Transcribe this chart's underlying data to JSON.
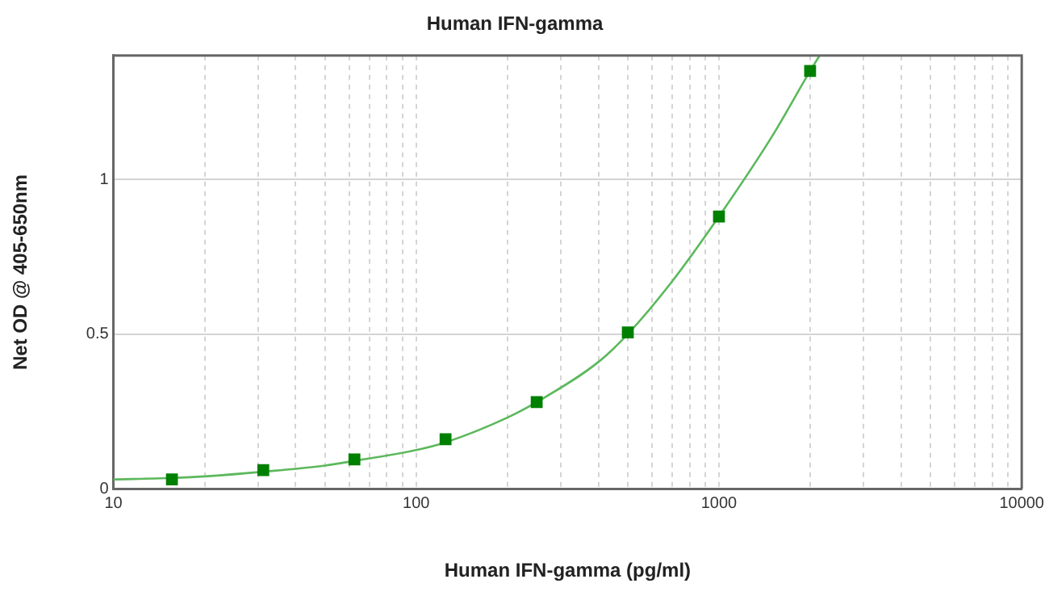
{
  "chart_data": {
    "type": "scatter",
    "title": "Human IFN-gamma",
    "xlabel": "Human IFN-gamma (pg/ml)",
    "ylabel": "Net OD @ 405-650nm",
    "log": "x",
    "grid": true,
    "legend": false,
    "xlim": [
      10,
      10000
    ],
    "ylim": [
      0,
      1.4
    ],
    "xticks": [
      10,
      {
        "value": 20,
        "label": null
      },
      {
        "value": 30,
        "label": null
      },
      {
        "value": 40,
        "label": null
      },
      {
        "value": 50,
        "label": null
      },
      {
        "value": 60,
        "label": null
      },
      {
        "value": 70,
        "label": null
      },
      {
        "value": 80,
        "label": null
      },
      {
        "value": 90,
        "label": null
      },
      100,
      {
        "value": 200,
        "label": null
      },
      {
        "value": 300,
        "label": null
      },
      {
        "value": 400,
        "label": null
      },
      {
        "value": 500,
        "label": null
      },
      {
        "value": 600,
        "label": null
      },
      {
        "value": 700,
        "label": null
      },
      {
        "value": 800,
        "label": null
      },
      {
        "value": 900,
        "label": null
      },
      1000,
      {
        "value": 2000,
        "label": null
      },
      {
        "value": 3000,
        "label": null
      },
      {
        "value": 4000,
        "label": null
      },
      {
        "value": 5000,
        "label": null
      },
      {
        "value": 6000,
        "label": null
      },
      {
        "value": 7000,
        "label": null
      },
      {
        "value": 8000,
        "label": null
      },
      {
        "value": 9000,
        "label": null
      },
      10000
    ],
    "yticks": [
      0,
      0.5,
      1
    ],
    "series": [
      {
        "type": "scatter",
        "marker": "square",
        "color": "#008000",
        "x": [
          15.6,
          31.25,
          62.5,
          125,
          250,
          500,
          1000,
          2000
        ],
        "values": [
          0.03,
          0.06,
          0.095,
          0.16,
          0.28,
          0.505,
          0.88,
          1.35
        ]
      },
      {
        "type": "line",
        "marker": "none",
        "line_style": "solid",
        "color": "#5cb85c",
        "x": [
          10,
          15.6,
          20,
          31.25,
          50,
          62.5,
          100,
          125,
          200,
          250,
          400,
          500,
          700,
          1000,
          1500,
          2000,
          2150
        ],
        "values": [
          0.03,
          0.035,
          0.04,
          0.055,
          0.075,
          0.09,
          0.125,
          0.15,
          0.23,
          0.28,
          0.41,
          0.5,
          0.67,
          0.88,
          1.14,
          1.35,
          1.4
        ]
      }
    ]
  }
}
